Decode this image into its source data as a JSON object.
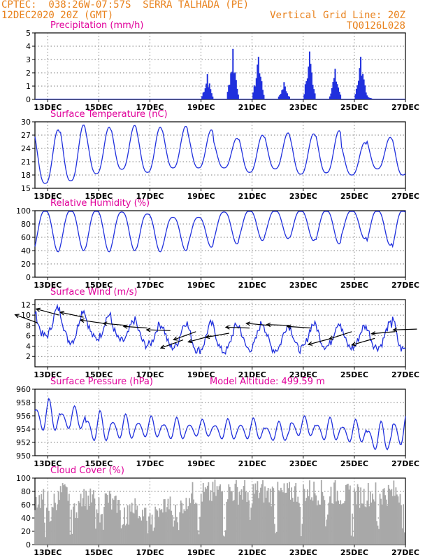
{
  "header": {
    "left_line1": "CPTEC:  038:26W-07:57S  SERRA TALHADA (PE)",
    "left_line2": "12DEC2020 20Z (GMT)",
    "right_line1": "Vertical Grid Line: 20Z",
    "right_line2": "TQ0126L028"
  },
  "colors": {
    "header": "#e8801a",
    "panel_title": "#e0009a",
    "series": "#2030dd",
    "cloud": "#a8a8a8",
    "wind_arrow": "#000000"
  },
  "chart_data": [
    {
      "id": "precip",
      "type": "bar",
      "title": "Precipitation (mm/h)",
      "ylim": [
        0,
        5
      ],
      "yticks": [
        "0",
        "1",
        "2",
        "3",
        "4",
        "5"
      ],
      "xticks": [
        "13DEC",
        "15DEC",
        "17DEC",
        "19DEC",
        "21DEC",
        "23DEC",
        "25DEC",
        "27DEC"
      ],
      "x_unit": "day index from 12DEC 20Z",
      "events": [
        {
          "x": 6.75,
          "peak": 1.9
        },
        {
          "x": 7.75,
          "peak": 3.8
        },
        {
          "x": 8.75,
          "peak": 3.2
        },
        {
          "x": 9.75,
          "peak": 1.3
        },
        {
          "x": 10.75,
          "peak": 3.6
        },
        {
          "x": 11.75,
          "peak": 2.3
        },
        {
          "x": 12.75,
          "peak": 3.2
        },
        {
          "x": 13.0,
          "peak": 0.3
        }
      ]
    },
    {
      "id": "temp",
      "type": "line",
      "title": "Surface Temperature (nC)",
      "ylim": [
        15,
        30
      ],
      "yticks": [
        "15",
        "18",
        "21",
        "24",
        "27",
        "30"
      ],
      "xticks": [
        "13DEC",
        "15DEC",
        "17DEC",
        "19DEC",
        "21DEC",
        "23DEC",
        "25DEC",
        "27DEC"
      ],
      "daily_max": [
        28.2,
        29.3,
        28.8,
        29.2,
        28.8,
        29.0,
        28.2,
        26.3,
        27.0,
        27.5,
        27.3,
        28.0,
        25.3,
        26.5,
        27.0,
        30.0
      ],
      "daily_min": [
        16.1,
        16.7,
        18.3,
        19.3,
        18.6,
        19.6,
        19.6,
        19.6,
        18.6,
        19.4,
        18.2,
        18.5,
        18.0,
        19.4,
        18.0,
        17.6
      ]
    },
    {
      "id": "rh",
      "type": "line",
      "title": "Relative Humidity (%)",
      "ylim": [
        0,
        100
      ],
      "yticks": [
        "0",
        "20",
        "40",
        "60",
        "80",
        "100"
      ],
      "xticks": [
        "13DEC",
        "15DEC",
        "17DEC",
        "19DEC",
        "21DEC",
        "23DEC",
        "25DEC",
        "27DEC"
      ],
      "daily_max": [
        100,
        100,
        100,
        98,
        95,
        90,
        90,
        98,
        100,
        100,
        100,
        100,
        100,
        100,
        100,
        100
      ],
      "daily_min": [
        38,
        40,
        38,
        40,
        38,
        40,
        45,
        50,
        55,
        58,
        55,
        50,
        58,
        48,
        38,
        35
      ]
    },
    {
      "id": "wind",
      "type": "line",
      "title": "Surface Wind (m/s)",
      "ylim": [
        0,
        13
      ],
      "yticks": [
        "2",
        "4",
        "6",
        "8",
        "10",
        "12"
      ],
      "xticks": [
        "13DEC",
        "15DEC",
        "17DEC",
        "19DEC",
        "21DEC",
        "23DEC",
        "25DEC",
        "27DEC"
      ],
      "daily_max": [
        11.3,
        11.0,
        10.0,
        9.0,
        8.2,
        8.6,
        8.3,
        8.0,
        8.5,
        8.0,
        8.3,
        8.6,
        7.8,
        8.2,
        11.0,
        10.0
      ],
      "daily_min": [
        6.0,
        5.0,
        5.5,
        5.0,
        4.2,
        3.8,
        3.2,
        3.0,
        3.5,
        3.3,
        3.4,
        4.0,
        3.7,
        3.8,
        3.4,
        7.5
      ],
      "arrows": [
        {
          "x": 0.1,
          "speed": 8.5,
          "dir_deg": 160
        },
        {
          "x": 0.95,
          "speed": 10.0,
          "dir_deg": 165
        },
        {
          "x": 1.9,
          "speed": 9.6,
          "dir_deg": 168
        },
        {
          "x": 2.7,
          "speed": 8.4,
          "dir_deg": 172
        },
        {
          "x": 3.6,
          "speed": 8.0,
          "dir_deg": 175
        },
        {
          "x": 4.4,
          "speed": 7.5,
          "dir_deg": 176
        },
        {
          "x": 5.3,
          "speed": 7.0,
          "dir_deg": 178
        },
        {
          "x": 5.8,
          "speed": 5.2,
          "dir_deg": 200
        },
        {
          "x": 6.3,
          "speed": 6.8,
          "dir_deg": 200
        },
        {
          "x": 6.9,
          "speed": 6.0,
          "dir_deg": 195
        },
        {
          "x": 7.6,
          "speed": 6.5,
          "dir_deg": 190
        },
        {
          "x": 8.4,
          "speed": 7.5,
          "dir_deg": 178
        },
        {
          "x": 9.2,
          "speed": 8.0,
          "dir_deg": 175
        },
        {
          "x": 10.0,
          "speed": 8.0,
          "dir_deg": 178
        },
        {
          "x": 10.8,
          "speed": 7.5,
          "dir_deg": 176
        },
        {
          "x": 11.6,
          "speed": 5.5,
          "dir_deg": 195
        },
        {
          "x": 12.4,
          "speed": 6.8,
          "dir_deg": 198
        },
        {
          "x": 13.3,
          "speed": 5.5,
          "dir_deg": 196
        },
        {
          "x": 14.1,
          "speed": 6.8,
          "dir_deg": 185
        },
        {
          "x": 14.95,
          "speed": 7.3,
          "dir_deg": 182
        }
      ]
    },
    {
      "id": "pressure",
      "type": "line",
      "title": "Surface Pressure (hPa)",
      "annotation": "Model Altitude: 499.59 m",
      "ylim": [
        950,
        960
      ],
      "yticks": [
        "950",
        "952",
        "954",
        "956",
        "958",
        "960"
      ],
      "xticks": [
        "13DEC",
        "15DEC",
        "17DEC",
        "19DEC",
        "21DEC",
        "23DEC",
        "25DEC",
        "27DEC"
      ],
      "daily_max": [
        958.6,
        957.5,
        956.8,
        956.3,
        956.0,
        955.8,
        955.5,
        955.6,
        955.7,
        955.2,
        956.0,
        955.8,
        955.5,
        955.2,
        956.5,
        955.0
      ],
      "daily_min": [
        953.0,
        953.5,
        951.5,
        952.0,
        952.3,
        952.0,
        952.5,
        952.0,
        952.0,
        951.8,
        952.5,
        951.8,
        951.5,
        950.2,
        950.8,
        952.0
      ]
    },
    {
      "id": "cloud",
      "type": "area",
      "title": "Cloud Cover (%)",
      "ylim": [
        0,
        100
      ],
      "yticks": [
        "0",
        "20",
        "40",
        "60",
        "80",
        "100"
      ],
      "xticks": [
        "13DEC",
        "15DEC",
        "17DEC",
        "19DEC",
        "21DEC",
        "23DEC",
        "25DEC",
        "27DEC"
      ],
      "day_levels": [
        85,
        95,
        85,
        75,
        60,
        75,
        95,
        100,
        100,
        95,
        100,
        98,
        92,
        96,
        98,
        100
      ]
    }
  ]
}
